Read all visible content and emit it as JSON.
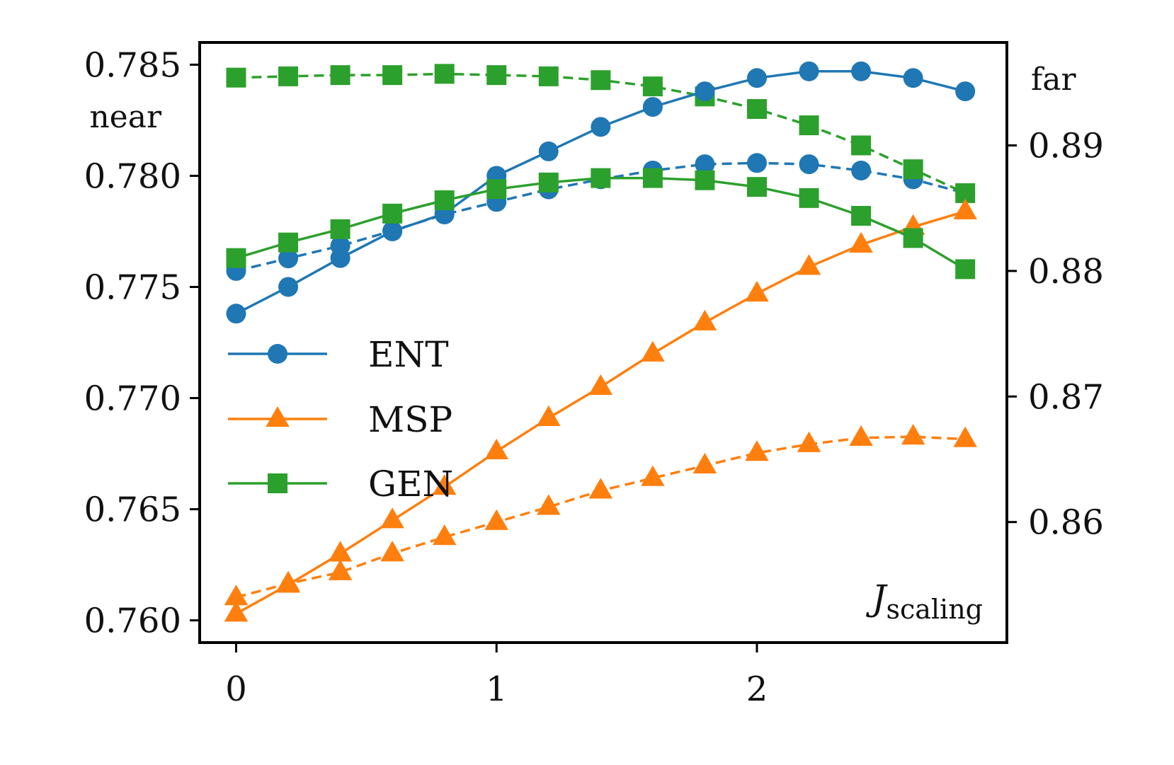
{
  "chart_data": {
    "type": "line",
    "x": [
      0,
      0.2,
      0.4,
      0.6,
      0.8,
      1.0,
      1.2,
      1.4,
      1.6,
      1.8,
      2.0,
      2.2,
      2.4,
      2.6,
      2.8
    ],
    "x_ticks": [
      0,
      1,
      2
    ],
    "x_tick_labels": [
      "0",
      "1",
      "2"
    ],
    "xlim": [
      -0.14,
      2.96
    ],
    "xlabel_main": "J",
    "xlabel_sub": "scaling",
    "left_axis": {
      "label": "near",
      "ylim": [
        0.759,
        0.786
      ],
      "ticks": [
        0.76,
        0.765,
        0.77,
        0.775,
        0.78,
        0.785
      ],
      "tick_labels": [
        "0.760",
        "0.765",
        "0.770",
        "0.775",
        "0.780",
        "0.785"
      ]
    },
    "right_axis": {
      "label": "far",
      "ylim": [
        0.8504,
        0.8982
      ],
      "ticks": [
        0.86,
        0.87,
        0.88,
        0.89
      ],
      "tick_labels": [
        "0.86",
        "0.87",
        "0.88",
        "0.89"
      ]
    },
    "series": [
      {
        "name": "ENT",
        "metric": "near",
        "axis": "left",
        "style": "solid",
        "marker": "circle",
        "color": "#1f77b4",
        "values": [
          0.7738,
          0.775,
          0.7763,
          0.7775,
          0.7783,
          0.78,
          0.7811,
          0.7822,
          0.7831,
          0.7838,
          0.7844,
          0.7847,
          0.7847,
          0.7844,
          0.7838
        ]
      },
      {
        "name": "ENT",
        "metric": "far",
        "axis": "right",
        "style": "dashed",
        "marker": "circle",
        "color": "#1f77b4",
        "values": [
          0.88,
          0.881,
          0.882,
          0.8832,
          0.8845,
          0.8855,
          0.8865,
          0.8873,
          0.888,
          0.8885,
          0.8886,
          0.8885,
          0.888,
          0.8873,
          0.8862
        ]
      },
      {
        "name": "MSP",
        "metric": "near",
        "axis": "left",
        "style": "solid",
        "marker": "triangle",
        "color": "#ff7f0e",
        "values": [
          0.7603,
          0.7616,
          0.763,
          0.7645,
          0.766,
          0.7676,
          0.7691,
          0.7705,
          0.772,
          0.7734,
          0.7747,
          0.7759,
          0.7769,
          0.7777,
          0.7784
        ]
      },
      {
        "name": "MSP",
        "metric": "far",
        "axis": "right",
        "style": "dashed",
        "marker": "triangle",
        "color": "#ff7f0e",
        "values": [
          0.854,
          0.8551,
          0.856,
          0.8575,
          0.8588,
          0.86,
          0.8612,
          0.8625,
          0.8635,
          0.8645,
          0.8655,
          0.8662,
          0.8667,
          0.8668,
          0.8666
        ]
      },
      {
        "name": "GEN",
        "metric": "near",
        "axis": "left",
        "style": "solid",
        "marker": "square",
        "color": "#2ca02c",
        "values": [
          0.7763,
          0.777,
          0.7776,
          0.7783,
          0.7789,
          0.7794,
          0.7797,
          0.7799,
          0.7799,
          0.7798,
          0.7795,
          0.779,
          0.7782,
          0.7772,
          0.7758
        ]
      },
      {
        "name": "GEN",
        "metric": "far",
        "axis": "right",
        "style": "dashed",
        "marker": "square",
        "color": "#2ca02c",
        "values": [
          0.8954,
          0.8955,
          0.8956,
          0.8956,
          0.8957,
          0.8956,
          0.8955,
          0.8952,
          0.8947,
          0.8939,
          0.8929,
          0.8916,
          0.89,
          0.8881,
          0.8862
        ]
      }
    ],
    "legend": {
      "placement": "center-left",
      "entries": [
        {
          "label": "ENT",
          "color": "#1f77b4",
          "marker": "circle"
        },
        {
          "label": "MSP",
          "color": "#ff7f0e",
          "marker": "triangle"
        },
        {
          "label": "GEN",
          "color": "#2ca02c",
          "marker": "square"
        }
      ]
    }
  }
}
